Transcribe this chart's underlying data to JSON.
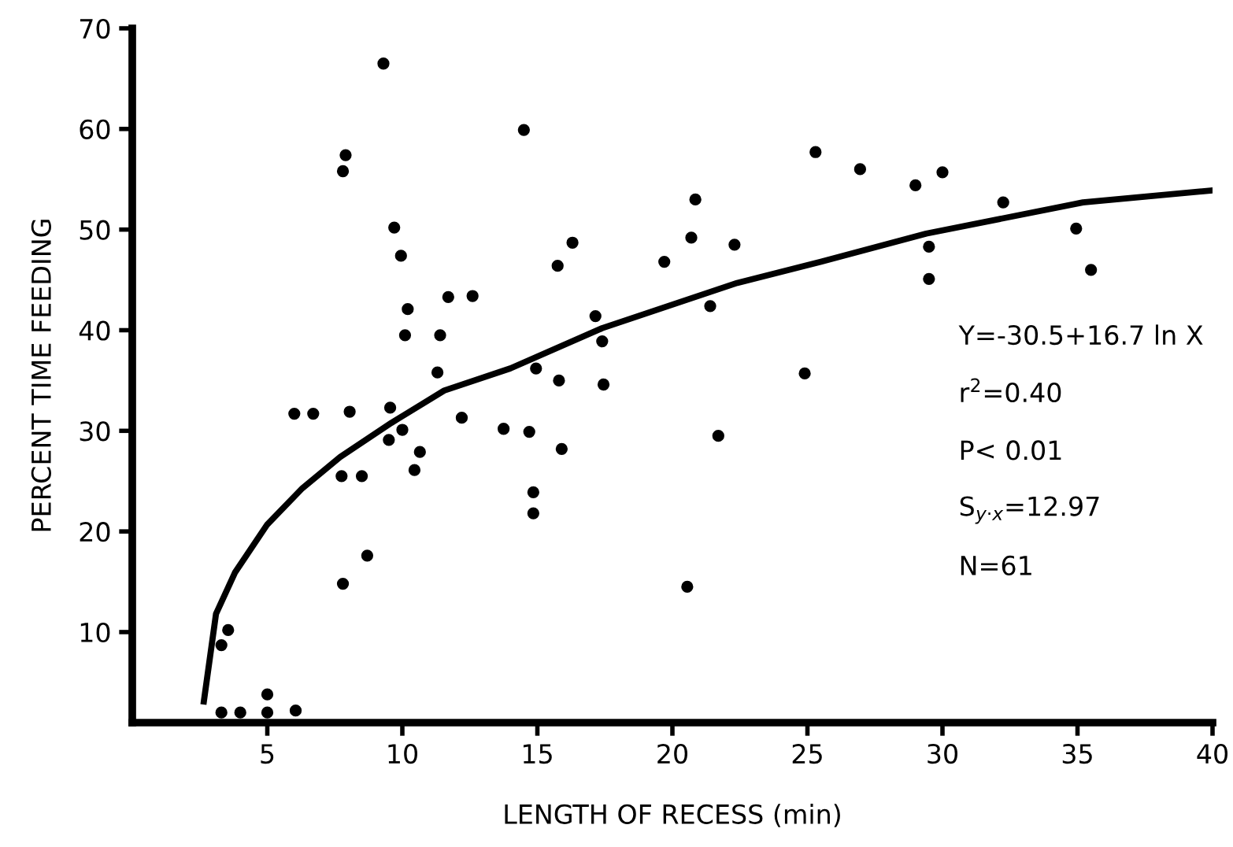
{
  "chart_data": {
    "type": "scatter",
    "xlabel": "LENGTH OF RECESS (min)",
    "ylabel": "PERCENT TIME FEEDING",
    "xlim": [
      0,
      40
    ],
    "ylim": [
      1,
      70
    ],
    "xticks": [
      5,
      10,
      15,
      20,
      25,
      30,
      35,
      40
    ],
    "yticks": [
      10,
      20,
      30,
      40,
      50,
      60,
      70
    ],
    "grid": false,
    "legend": false,
    "marker": "circle",
    "series": [
      {
        "color": "#000000",
        "x": [
          9.3,
          7.9,
          7.8,
          9.7,
          9.95,
          10.2,
          11.7,
          12.6,
          10.1,
          11.4,
          11.3,
          6.0,
          6.7,
          8.05,
          9.55,
          12.2,
          13.75,
          10.0,
          9.5,
          10.65,
          10.45,
          7.75,
          8.5,
          8.7,
          7.8,
          3.55,
          3.3,
          5.0,
          3.3,
          4.0,
          5.0,
          6.05,
          14.5,
          25.3,
          20.85,
          20.7,
          22.3,
          16.3,
          15.75,
          19.7,
          21.4,
          17.15,
          17.4,
          14.95,
          15.8,
          17.45,
          24.9,
          14.7,
          15.9,
          21.7,
          14.85,
          14.85,
          20.55,
          26.95,
          29.0,
          30.0,
          32.25,
          34.95,
          29.5,
          29.5,
          35.5
        ],
        "values": [
          66.5,
          57.4,
          55.8,
          50.2,
          47.4,
          42.1,
          43.3,
          43.4,
          39.5,
          39.5,
          35.8,
          31.7,
          31.7,
          31.9,
          32.3,
          31.3,
          30.2,
          30.1,
          29.1,
          27.9,
          26.1,
          25.5,
          25.5,
          17.6,
          14.8,
          10.2,
          8.7,
          3.8,
          2.0,
          2.0,
          2.0,
          2.2,
          59.9,
          57.7,
          53.0,
          49.2,
          48.5,
          48.7,
          46.4,
          46.8,
          42.4,
          41.4,
          38.9,
          36.2,
          35.0,
          34.6,
          35.7,
          29.9,
          28.2,
          29.5,
          23.9,
          21.8,
          14.5,
          56.0,
          54.4,
          55.7,
          52.7,
          50.1,
          48.3,
          45.1,
          46.0
        ]
      },
      {
        "type": "line",
        "color": "#000000",
        "marker": "none",
        "x": [
          2.65,
          3.1,
          3.8,
          5.0,
          6.3,
          7.7,
          9.6,
          11.55,
          14.0,
          17.4,
          22.4,
          25.5,
          29.4,
          35.2,
          40.0
        ],
        "values": [
          3.1,
          11.8,
          15.9,
          20.7,
          24.3,
          27.4,
          30.8,
          34.0,
          36.2,
          40.2,
          44.7,
          46.8,
          49.6,
          52.7,
          53.9
        ]
      }
    ],
    "annotations": [
      "Y=-30.5+16.7 ln X",
      "r$^{2}$=0.40",
      "P< 0.01",
      "S$_{y·x}$=12.97",
      "N=61"
    ]
  }
}
